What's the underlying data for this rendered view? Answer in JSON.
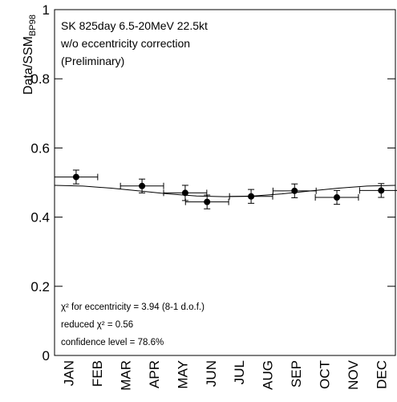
{
  "chart_data": {
    "type": "scatter",
    "header": [
      "SK 825day  6.5-20MeV  22.5kt",
      "w/o eccentricity correction",
      "(Preliminary)"
    ],
    "y_label": "Data/SSM",
    "y_label_sub": "BP98",
    "annotations": [
      "χ² for eccentricity = 3.94 (8-1 d.o.f.)",
      "reduced χ² = 0.56",
      "confidence level = 78.6%"
    ],
    "categories": [
      "JAN",
      "FEB",
      "MAR",
      "APR",
      "MAY",
      "JUN",
      "JUL",
      "AUG",
      "SEP",
      "OCT",
      "NOV",
      "DEC"
    ],
    "xlim": [
      0,
      12
    ],
    "ylim": [
      0,
      1
    ],
    "yticks": [
      0,
      0.2,
      0.4,
      0.6,
      0.8,
      1
    ],
    "series": [
      {
        "color": "#000000",
        "x": [
          0.76,
          3.08,
          4.6,
          5.37,
          6.92,
          8.45,
          9.94,
          11.5
        ],
        "values": [
          0.516,
          0.49,
          0.47,
          0.444,
          0.46,
          0.476,
          0.457,
          0.477
        ],
        "xerr": [
          0.76,
          0.76,
          0.76,
          0.76,
          0.76,
          0.76,
          0.76,
          0.76
        ],
        "yerr": [
          0.02,
          0.02,
          0.022,
          0.02,
          0.02,
          0.02,
          0.02,
          0.02
        ]
      },
      {
        "color": "#000000",
        "x": [
          0,
          1,
          2,
          3,
          4,
          5,
          6,
          7,
          8,
          9,
          10,
          11,
          12
        ],
        "values": [
          0.492,
          0.4898,
          0.4838,
          0.4755,
          0.4673,
          0.4612,
          0.459,
          0.4612,
          0.4673,
          0.4755,
          0.4838,
          0.4898,
          0.492
        ]
      }
    ]
  }
}
